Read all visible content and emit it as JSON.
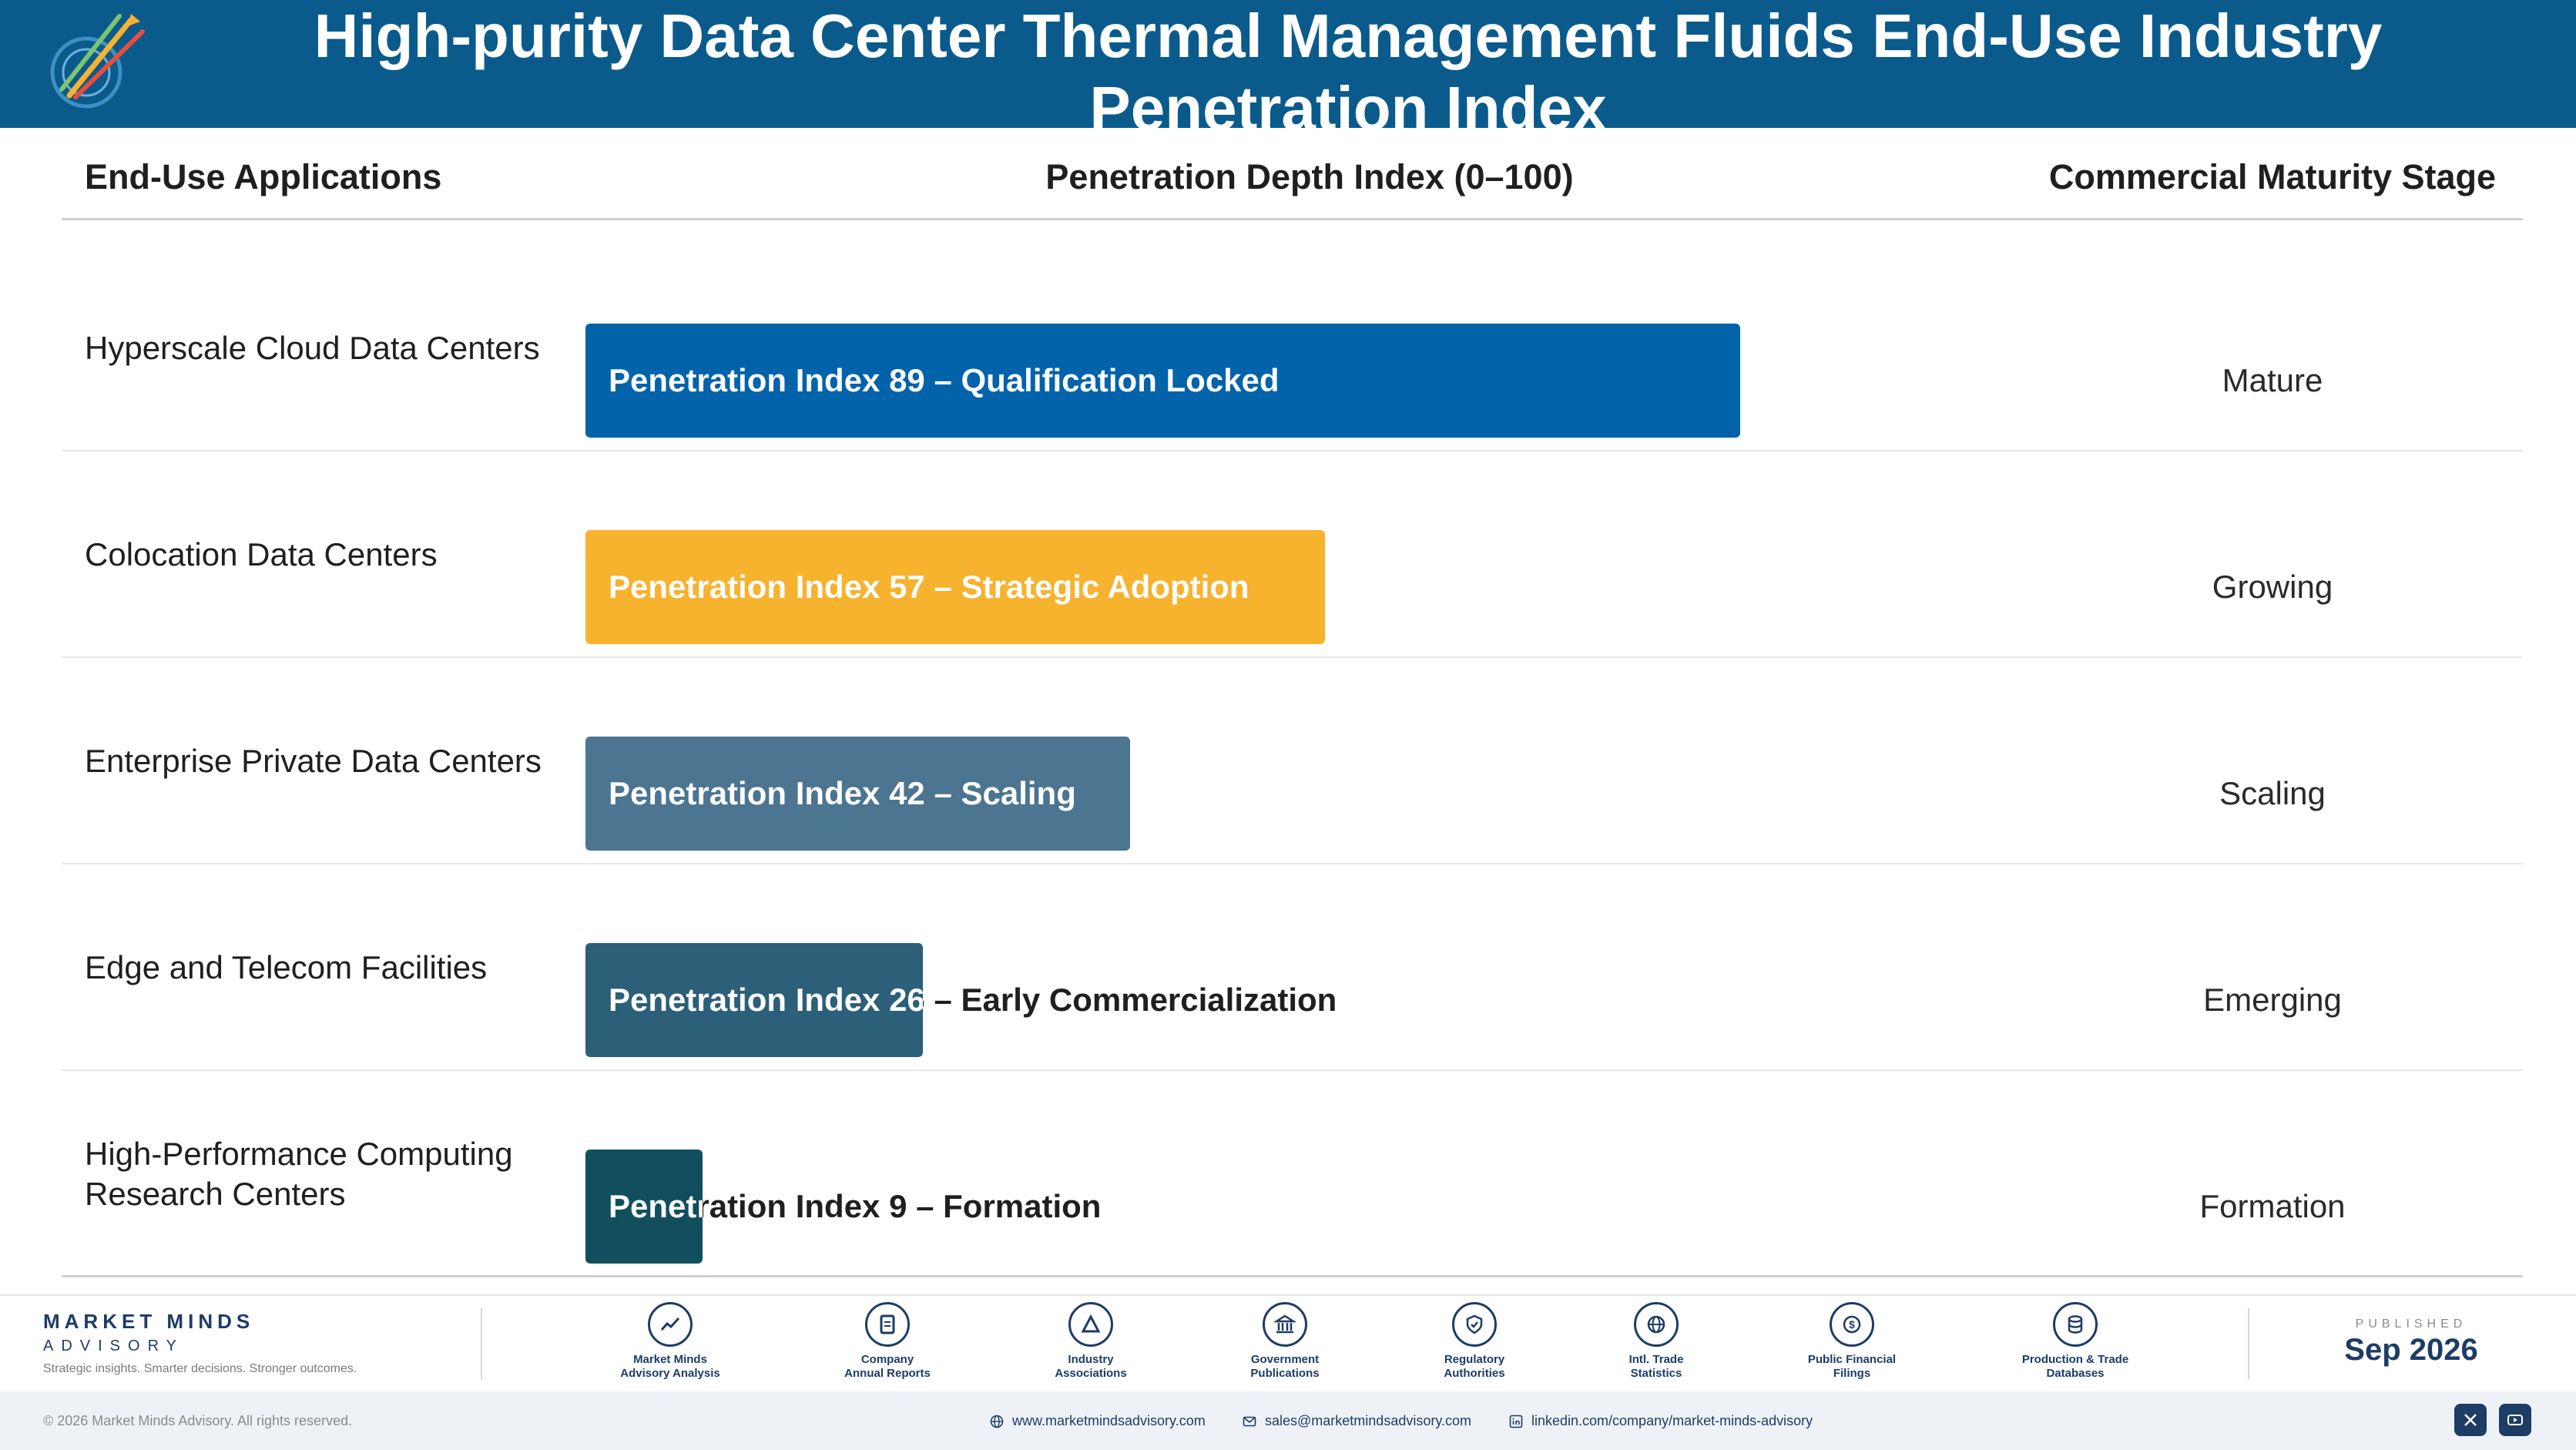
{
  "header": {
    "title": "High-purity Data Center Thermal Management Fluids End-Use Industry Penetration Index"
  },
  "columns": {
    "applications": "End-Use Applications",
    "penetration": "Penetration Depth Index (0–100)",
    "stage": "Commercial Maturity Stage"
  },
  "rows": [
    {
      "label": "Hyperscale Cloud Data Centers",
      "bar_text": "Penetration Index 89 – Qualification Locked",
      "stage": "Mature"
    },
    {
      "label": "Colocation Data Centers",
      "bar_text": "Penetration Index 57 – Strategic Adoption",
      "stage": "Growing"
    },
    {
      "label": "Enterprise Private Data Centers",
      "bar_text": "Penetration Index 42 – Scaling",
      "stage": "Scaling"
    },
    {
      "label": "Edge and Telecom Facilities",
      "bar_text": "Penetration Index 26 – Early Commercialization",
      "stage": "Emerging"
    },
    {
      "label": "High-Performance Computing Research Centers",
      "bar_text": "Penetration Index 9 – Formation",
      "stage": "Formation"
    }
  ],
  "chart_data": {
    "type": "bar",
    "orientation": "horizontal",
    "categories": [
      "Hyperscale Cloud Data Centers",
      "Colocation Data Centers",
      "Enterprise Private Data Centers",
      "Edge and Telecom Facilities",
      "High-Performance Computing Research Centers"
    ],
    "values": [
      89,
      57,
      42,
      26,
      9
    ],
    "xlim": [
      0,
      100
    ],
    "colors": [
      "#0263aa",
      "#f7b22e",
      "#4b7590",
      "#2c5f78",
      "#114f5f"
    ],
    "grid": false,
    "legend": "none"
  },
  "footer": {
    "brand_name": "MARKET MINDS",
    "brand_sub": "ADVISORY",
    "tagline": "Strategic insights. Smarter decisions. Stronger outcomes.",
    "sources": [
      {
        "line1": "Market Minds",
        "line2": "Advisory Analysis",
        "icon": "chart-line-icon"
      },
      {
        "line1": "Company",
        "line2": "Annual Reports",
        "icon": "document-icon"
      },
      {
        "line1": "Industry",
        "line2": "Associations",
        "icon": "network-icon"
      },
      {
        "line1": "Government",
        "line2": "Publications",
        "icon": "government-building-icon"
      },
      {
        "line1": "Regulatory",
        "line2": "Authorities",
        "icon": "shield-check-icon"
      },
      {
        "line1": "Intl. Trade",
        "line2": "Statistics",
        "icon": "globe-icon"
      },
      {
        "line1": "Public Financial",
        "line2": "Filings",
        "icon": "dollar-coin-icon"
      },
      {
        "line1": "Production & Trade",
        "line2": "Databases",
        "icon": "database-icon"
      }
    ],
    "published_label": "PUBLISHED",
    "published_date": "Sep 2026",
    "copyright": "© 2026 Market Minds Advisory. All rights reserved.",
    "website": "www.marketmindsadvisory.com",
    "email": "sales@marketmindsadvisory.com",
    "linkedin": "linkedin.com/company/market-minds-advisory"
  }
}
